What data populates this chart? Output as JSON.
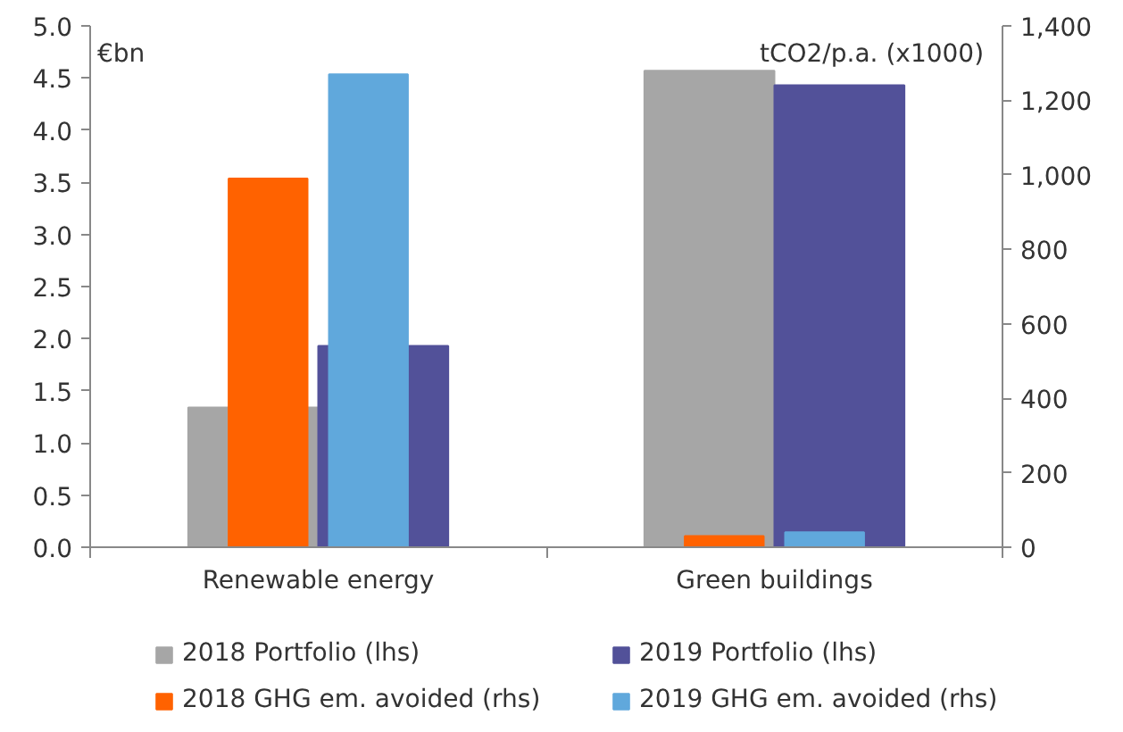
{
  "chart_data": {
    "type": "bar",
    "ylabel": "€bn",
    "y2label": "tCO2/p.a.  (x1000)",
    "categories": [
      "Renewable energy",
      "Green buildings"
    ],
    "series": [
      {
        "name": "2018 Portfolio (lhs)",
        "color": "#a6a6a6",
        "values": [
          1.34,
          4.57
        ]
      },
      {
        "name": "2019 Portfolio (lhs)",
        "color": "#525199",
        "values": [
          1.93,
          4.43
        ]
      },
      {
        "name": "2018 GHG em. avoided (rhs)",
        "color": "#ff6200",
        "values": [
          990,
          30
        ],
        "axis": "y2"
      },
      {
        "name": "2019 GHG em. avoided (rhs)",
        "color": "#60a8dc",
        "values": [
          1270,
          40
        ],
        "axis": "y2"
      }
    ],
    "ylim": [
      0,
      5
    ],
    "yticks": [
      {
        "value": 0,
        "label": "0.0"
      },
      {
        "value": 0.5,
        "label": "0.5"
      },
      {
        "value": 1,
        "label": "1.0"
      },
      {
        "value": 1.5,
        "label": "1.5"
      },
      {
        "value": 2,
        "label": "2.0"
      },
      {
        "value": 2.5,
        "label": "2.5"
      },
      {
        "value": 3,
        "label": "3.0"
      },
      {
        "value": 3.5,
        "label": "3.5"
      },
      {
        "value": 4,
        "label": "4.0"
      },
      {
        "value": 4.5,
        "label": "4.5"
      },
      {
        "value": 5,
        "label": "5.0"
      }
    ],
    "y2lim": [
      0,
      1400
    ],
    "y2ticks": [
      {
        "value": 0,
        "label": "0"
      },
      {
        "value": 200,
        "label": "200"
      },
      {
        "value": 400,
        "label": "400"
      },
      {
        "value": 600,
        "label": "600"
      },
      {
        "value": 800,
        "label": "800"
      },
      {
        "value": 1000,
        "label": "1,000"
      },
      {
        "value": 1200,
        "label": "1,200"
      },
      {
        "value": 1400,
        "label": "1,400"
      }
    ],
    "grid": false,
    "legend": "bottom"
  }
}
